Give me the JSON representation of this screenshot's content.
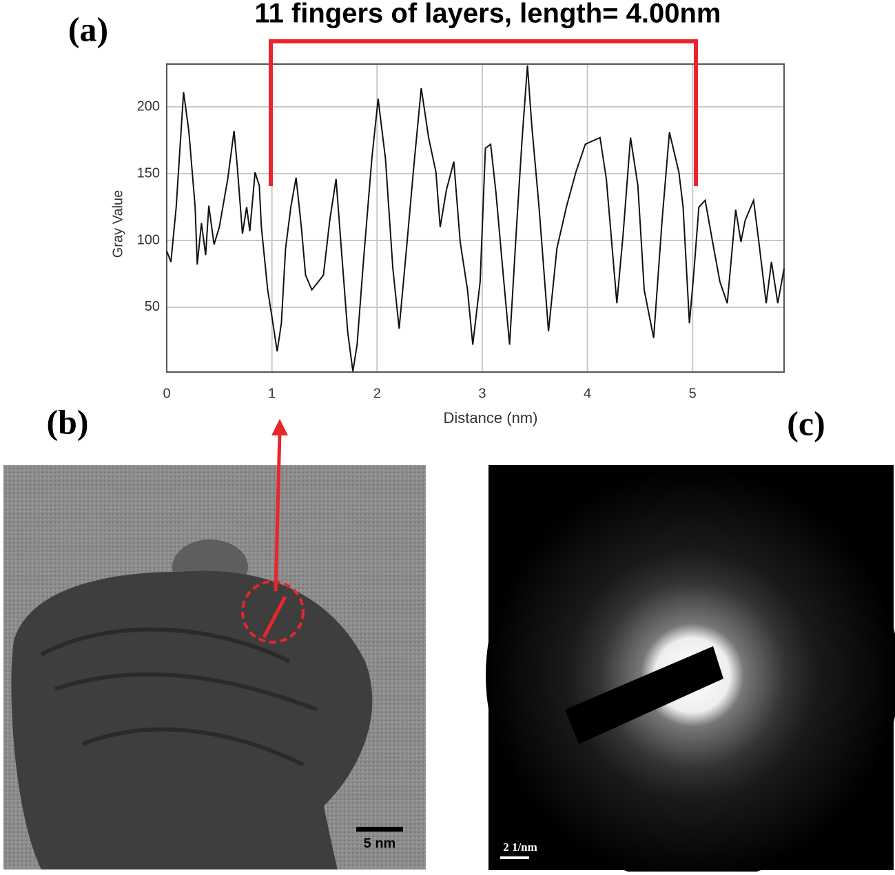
{
  "chart_data": {
    "type": "line",
    "title": "11 fingers of layers, length= 4.00nm",
    "x_label": "Distance (nm)",
    "y_label": "Gray Value",
    "x": [
      0.0,
      0.04,
      0.09,
      0.16,
      0.21,
      0.27,
      0.29,
      0.33,
      0.37,
      0.4,
      0.45,
      0.5,
      0.58,
      0.64,
      0.67,
      0.72,
      0.76,
      0.79,
      0.84,
      0.88,
      0.9,
      0.96,
      1.0,
      1.05,
      1.09,
      1.13,
      1.18,
      1.23,
      1.28,
      1.32,
      1.38,
      1.44,
      1.49,
      1.55,
      1.61,
      1.66,
      1.72,
      1.77,
      1.81,
      1.87,
      1.95,
      2.01,
      2.08,
      2.15,
      2.21,
      2.28,
      2.35,
      2.42,
      2.49,
      2.56,
      2.6,
      2.66,
      2.73,
      2.79,
      2.86,
      2.91,
      2.98,
      3.03,
      3.08,
      3.13,
      3.2,
      3.26,
      3.33,
      3.38,
      3.43,
      3.47,
      3.54,
      3.63,
      3.71,
      3.8,
      3.89,
      3.98,
      4.12,
      4.18,
      4.28,
      4.34,
      4.41,
      4.48,
      4.54,
      4.63,
      4.71,
      4.78,
      4.87,
      4.91,
      4.97,
      5.01,
      5.06,
      5.12,
      5.19,
      5.26,
      5.33,
      5.41,
      5.46,
      5.5,
      5.58,
      5.63,
      5.7,
      5.75,
      5.81,
      5.87
    ],
    "series": [
      {
        "color": "#111111",
        "values": [
          92,
          84,
          125,
          211,
          182,
          125,
          82,
          113,
          89,
          126,
          97,
          110,
          146,
          182,
          156,
          105,
          125,
          107,
          151,
          141,
          110,
          63,
          43,
          17,
          38,
          94,
          125,
          147,
          110,
          74,
          63,
          69,
          74,
          115,
          146,
          94,
          32,
          2,
          22,
          84,
          161,
          206,
          161,
          79,
          34,
          94,
          156,
          214,
          177,
          151,
          110,
          138,
          159,
          99,
          63,
          22,
          69,
          169,
          172,
          136,
          74,
          22,
          115,
          177,
          231,
          187,
          125,
          32,
          94,
          125,
          151,
          172,
          177,
          146,
          53,
          105,
          177,
          141,
          63,
          27,
          115,
          181,
          151,
          125,
          38,
          74,
          125,
          130,
          99,
          69,
          53,
          123,
          99,
          115,
          130,
          99,
          53,
          84,
          53,
          79
        ]
      }
    ],
    "xlim": [
      0,
      5.87
    ],
    "ylim": [
      1.5,
      232
    ],
    "xticks": [
      0,
      1,
      2,
      3,
      4,
      5
    ],
    "yticks": [
      50,
      100,
      150,
      200
    ],
    "grid": true
  },
  "panels": {
    "a": "(a)",
    "b": "(b)",
    "c": "(c)"
  },
  "images": {
    "b": {
      "scale_bar": "5 nm"
    },
    "c": {
      "scale_bar": "2 1/nm"
    }
  }
}
